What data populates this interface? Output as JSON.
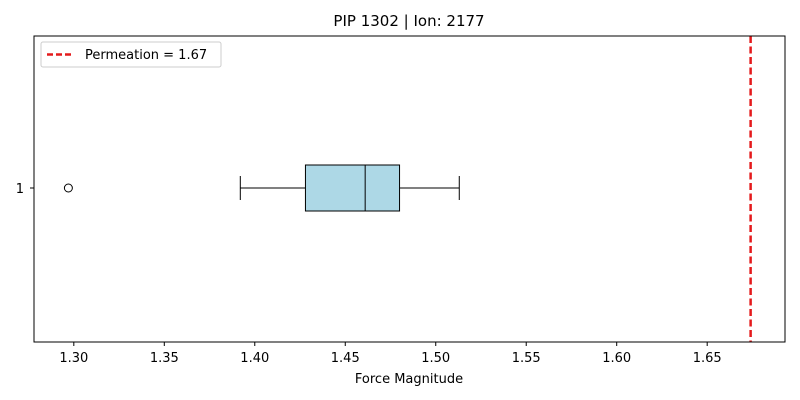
{
  "chart_data": {
    "type": "boxplot",
    "title": "PIP 1302 | Ion: 2177",
    "xlabel": "Force Magnitude",
    "ylabel": "",
    "orientation": "horizontal",
    "xlim": [
      1.278,
      1.693
    ],
    "x_ticks": [
      "1.30",
      "1.35",
      "1.40",
      "1.45",
      "1.50",
      "1.55",
      "1.60",
      "1.65"
    ],
    "y_ticks": [
      "1"
    ],
    "box": {
      "category": "1",
      "whisker_low": 1.392,
      "q1": 1.428,
      "median": 1.461,
      "q3": 1.48,
      "whisker_high": 1.513,
      "outliers": [
        1.297
      ],
      "fill_color": "#add8e6",
      "edge_color": "#000000"
    },
    "reference_line": {
      "x": 1.674,
      "label": "Permeation = 1.67",
      "color": "#e41a1c",
      "style": "dashed"
    },
    "legend_placement": "top-left",
    "grid": false
  }
}
